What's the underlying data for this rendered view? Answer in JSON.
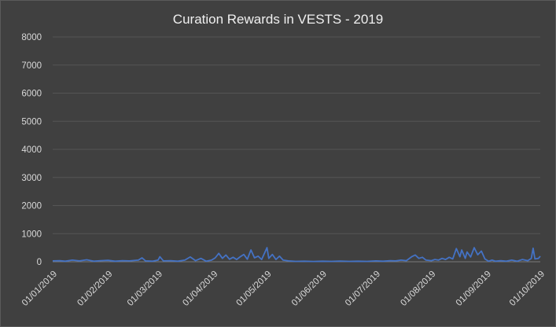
{
  "chart_data": {
    "type": "line",
    "title": "Curation Rewards in VESTS - 2019",
    "xlabel": "",
    "ylabel": "",
    "ylim": [
      0,
      8000
    ],
    "yticks": [
      0,
      1000,
      2000,
      3000,
      4000,
      5000,
      6000,
      7000,
      8000
    ],
    "xlim": [
      "2019-01-01",
      "2019-10-01"
    ],
    "xtick_labels": [
      "01/01/2019",
      "01/02/2019",
      "01/03/2019",
      "01/04/2019",
      "01/05/2019",
      "01/06/2019",
      "01/07/2019",
      "01/08/2019",
      "01/09/2019",
      "01/10/2019"
    ],
    "grid": "horizontal",
    "legend": "none",
    "series_color": "#4472c4",
    "series": [
      {
        "values": [
          [
            "2019-01-01",
            30
          ],
          [
            "2019-01-05",
            40
          ],
          [
            "2019-01-08",
            20
          ],
          [
            "2019-01-12",
            60
          ],
          [
            "2019-01-16",
            30
          ],
          [
            "2019-01-20",
            70
          ],
          [
            "2019-01-24",
            20
          ],
          [
            "2019-01-28",
            40
          ],
          [
            "2019-02-01",
            50
          ],
          [
            "2019-02-05",
            20
          ],
          [
            "2019-02-09",
            40
          ],
          [
            "2019-02-13",
            30
          ],
          [
            "2019-02-18",
            60
          ],
          [
            "2019-02-20",
            140
          ],
          [
            "2019-02-22",
            30
          ],
          [
            "2019-02-26",
            20
          ],
          [
            "2019-03-01",
            60
          ],
          [
            "2019-03-02",
            180
          ],
          [
            "2019-03-04",
            30
          ],
          [
            "2019-03-08",
            40
          ],
          [
            "2019-03-12",
            20
          ],
          [
            "2019-03-16",
            60
          ],
          [
            "2019-03-19",
            170
          ],
          [
            "2019-03-22",
            40
          ],
          [
            "2019-03-25",
            120
          ],
          [
            "2019-03-28",
            20
          ],
          [
            "2019-03-31",
            60
          ],
          [
            "2019-04-02",
            140
          ],
          [
            "2019-04-04",
            300
          ],
          [
            "2019-04-06",
            120
          ],
          [
            "2019-04-08",
            240
          ],
          [
            "2019-04-10",
            90
          ],
          [
            "2019-04-12",
            160
          ],
          [
            "2019-04-14",
            80
          ],
          [
            "2019-04-16",
            180
          ],
          [
            "2019-04-18",
            260
          ],
          [
            "2019-04-20",
            90
          ],
          [
            "2019-04-22",
            420
          ],
          [
            "2019-04-24",
            140
          ],
          [
            "2019-04-26",
            200
          ],
          [
            "2019-04-28",
            80
          ],
          [
            "2019-05-01",
            500
          ],
          [
            "2019-05-02",
            120
          ],
          [
            "2019-05-04",
            260
          ],
          [
            "2019-05-06",
            80
          ],
          [
            "2019-05-08",
            200
          ],
          [
            "2019-05-10",
            60
          ],
          [
            "2019-05-13",
            30
          ],
          [
            "2019-05-17",
            15
          ],
          [
            "2019-05-22",
            20
          ],
          [
            "2019-05-27",
            10
          ],
          [
            "2019-06-01",
            20
          ],
          [
            "2019-06-06",
            15
          ],
          [
            "2019-06-11",
            25
          ],
          [
            "2019-06-16",
            15
          ],
          [
            "2019-06-21",
            20
          ],
          [
            "2019-06-26",
            15
          ],
          [
            "2019-07-01",
            30
          ],
          [
            "2019-07-05",
            20
          ],
          [
            "2019-07-09",
            40
          ],
          [
            "2019-07-12",
            30
          ],
          [
            "2019-07-15",
            60
          ],
          [
            "2019-07-18",
            40
          ],
          [
            "2019-07-21",
            180
          ],
          [
            "2019-07-23",
            240
          ],
          [
            "2019-07-25",
            120
          ],
          [
            "2019-07-27",
            160
          ],
          [
            "2019-07-29",
            60
          ],
          [
            "2019-08-01",
            40
          ],
          [
            "2019-08-03",
            80
          ],
          [
            "2019-08-05",
            60
          ],
          [
            "2019-08-07",
            120
          ],
          [
            "2019-08-09",
            80
          ],
          [
            "2019-08-11",
            160
          ],
          [
            "2019-08-13",
            100
          ],
          [
            "2019-08-15",
            470
          ],
          [
            "2019-08-17",
            180
          ],
          [
            "2019-08-18",
            420
          ],
          [
            "2019-08-20",
            120
          ],
          [
            "2019-08-21",
            350
          ],
          [
            "2019-08-23",
            170
          ],
          [
            "2019-08-25",
            500
          ],
          [
            "2019-08-27",
            250
          ],
          [
            "2019-08-29",
            380
          ],
          [
            "2019-08-31",
            100
          ],
          [
            "2019-09-02",
            20
          ],
          [
            "2019-09-04",
            60
          ],
          [
            "2019-09-06",
            20
          ],
          [
            "2019-09-09",
            40
          ],
          [
            "2019-09-12",
            20
          ],
          [
            "2019-09-15",
            60
          ],
          [
            "2019-09-18",
            20
          ],
          [
            "2019-09-21",
            80
          ],
          [
            "2019-09-24",
            40
          ],
          [
            "2019-09-26",
            120
          ],
          [
            "2019-09-27",
            480
          ],
          [
            "2019-09-28",
            100
          ],
          [
            "2019-09-30",
            120
          ],
          [
            "2019-10-01",
            200
          ]
        ]
      }
    ]
  }
}
